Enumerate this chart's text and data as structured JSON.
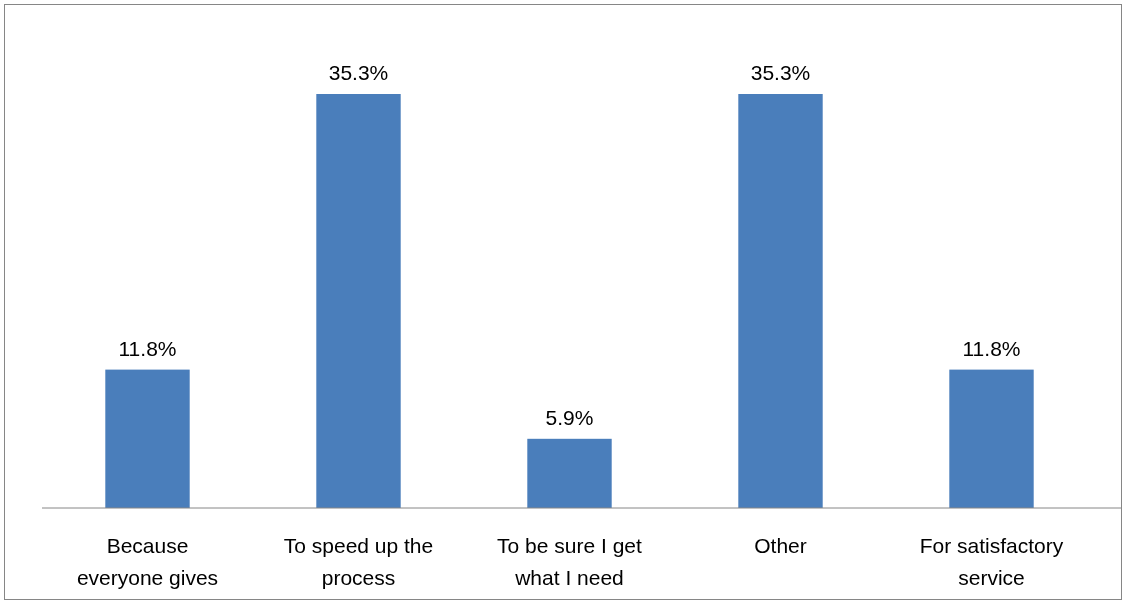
{
  "chart_data": {
    "type": "bar",
    "categories": [
      "Because everyone gives",
      "To speed up the process",
      "To be sure I get what I need",
      "Other",
      "For satisfactory service"
    ],
    "values": [
      11.8,
      35.3,
      5.9,
      35.3,
      11.8
    ],
    "value_labels": [
      "11.8%",
      "35.3%",
      "5.9%",
      "35.3%",
      "11.8%"
    ],
    "color": "#4a7ebb"
  }
}
